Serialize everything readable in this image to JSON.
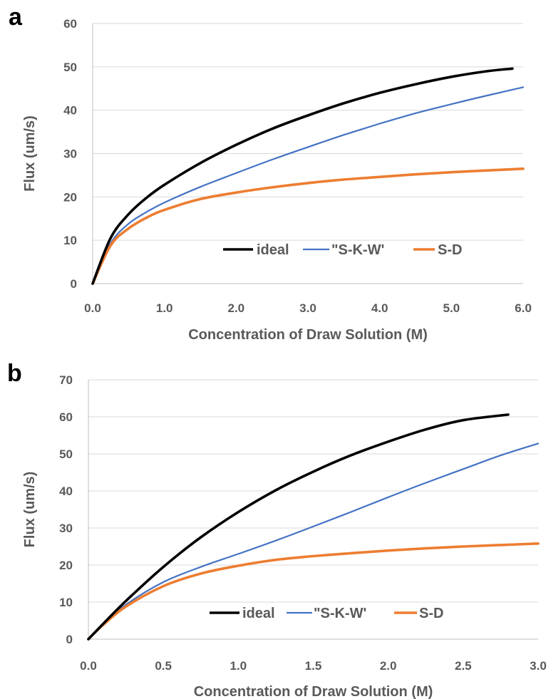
{
  "chart_data": [
    {
      "panel_label": "a",
      "type": "line",
      "xlabel": "Concentration of Draw Solution (M)",
      "ylabel": "Flux (um/s)",
      "xlim": [
        0,
        6
      ],
      "ylim": [
        0,
        60
      ],
      "x_ticks": [
        "0.0",
        "1.0",
        "2.0",
        "3.0",
        "4.0",
        "5.0",
        "6.0"
      ],
      "y_ticks": [
        "0",
        "10",
        "20",
        "30",
        "40",
        "50",
        "60"
      ],
      "grid": "horizontal",
      "legend_position": "inside-lower-right",
      "series": [
        {
          "name": "ideal",
          "color": "#000000",
          "x": [
            0,
            0.25,
            0.5,
            0.75,
            1.0,
            1.5,
            2.0,
            2.5,
            3.0,
            3.5,
            4.0,
            4.5,
            5.0,
            5.5,
            5.85
          ],
          "y": [
            0,
            10.5,
            16,
            19.8,
            22.8,
            27.8,
            32,
            35.7,
            38.8,
            41.6,
            44,
            46,
            47.7,
            49,
            49.6
          ]
        },
        {
          "name": "\"S-K-W'",
          "color": "#4472c4",
          "x": [
            0,
            0.25,
            0.5,
            0.75,
            1.0,
            1.5,
            2.0,
            2.5,
            3.0,
            3.5,
            4.0,
            4.5,
            5.0,
            5.5,
            6.0
          ],
          "y": [
            0,
            9.3,
            13.8,
            16.5,
            18.7,
            22.3,
            25.5,
            28.6,
            31.5,
            34.3,
            36.9,
            39.3,
            41.4,
            43.4,
            45.3
          ]
        },
        {
          "name": "S-D",
          "color": "#ed7d31",
          "x": [
            0,
            0.25,
            0.5,
            0.75,
            1.0,
            1.5,
            2.0,
            2.5,
            3.0,
            3.5,
            4.0,
            4.5,
            5.0,
            5.5,
            6.0
          ],
          "y": [
            0,
            8.8,
            12.7,
            15.2,
            17,
            19.5,
            21,
            22.2,
            23.2,
            24,
            24.6,
            25.2,
            25.7,
            26.1,
            26.5
          ]
        }
      ]
    },
    {
      "panel_label": "b",
      "type": "line",
      "xlabel": "Concentration of Draw Solution (M)",
      "ylabel": "Flux (um/s)",
      "xlim": [
        0,
        3
      ],
      "ylim": [
        0,
        70
      ],
      "x_ticks": [
        "0.0",
        "0.5",
        "1.0",
        "1.5",
        "2.0",
        "2.5",
        "3.0"
      ],
      "y_ticks": [
        "0",
        "10",
        "20",
        "30",
        "40",
        "50",
        "60",
        "70"
      ],
      "grid": "horizontal",
      "legend_position": "inside-lower-right",
      "series": [
        {
          "name": "ideal",
          "color": "#000000",
          "x": [
            0,
            0.1,
            0.25,
            0.5,
            0.75,
            1.0,
            1.25,
            1.5,
            1.75,
            2.0,
            2.25,
            2.5,
            2.8
          ],
          "y": [
            0,
            4.2,
            10.3,
            19.5,
            27.5,
            34.3,
            40.2,
            45.2,
            49.6,
            53.3,
            56.6,
            59.1,
            60.6
          ]
        },
        {
          "name": "\"S-K-W'",
          "color": "#4472c4",
          "x": [
            0,
            0.1,
            0.25,
            0.5,
            0.75,
            1.0,
            1.25,
            1.5,
            1.75,
            2.0,
            2.25,
            2.5,
            2.75,
            3.0
          ],
          "y": [
            0,
            4.0,
            9.3,
            15.4,
            19.5,
            23.0,
            26.6,
            30.4,
            34.3,
            38.3,
            42.2,
            45.9,
            49.6,
            52.8
          ]
        },
        {
          "name": "S-D",
          "color": "#ed7d31",
          "x": [
            0,
            0.1,
            0.25,
            0.5,
            0.75,
            1.0,
            1.25,
            1.5,
            1.75,
            2.0,
            2.25,
            2.5,
            2.75,
            3.0
          ],
          "y": [
            0,
            3.9,
            8.8,
            14.3,
            17.7,
            19.8,
            21.4,
            22.4,
            23.2,
            23.9,
            24.5,
            25.0,
            25.4,
            25.8
          ]
        }
      ]
    }
  ]
}
